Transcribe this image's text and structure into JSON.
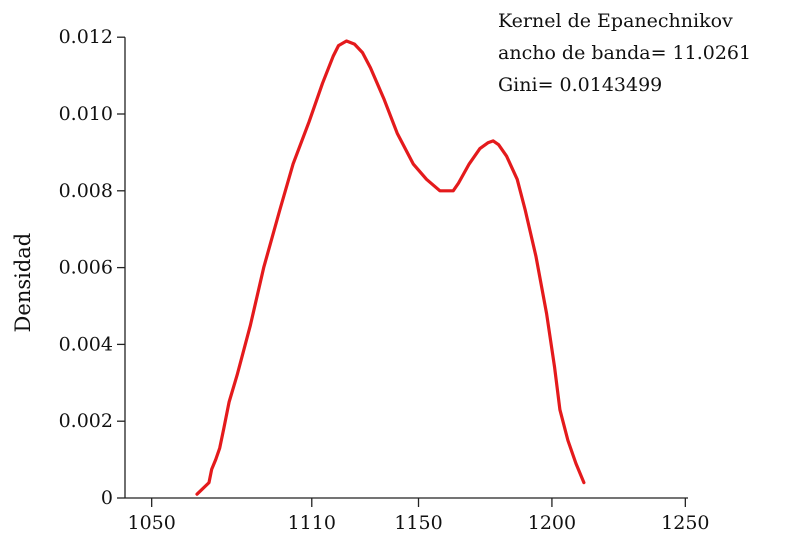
{
  "chart_data": {
    "type": "line",
    "title": "",
    "xlabel": "",
    "ylabel": "Densidad",
    "xlim": [
      1040,
      1251
    ],
    "ylim": [
      0,
      0.0125
    ],
    "xticks": [
      1050,
      1110,
      1150,
      1200,
      1250
    ],
    "xtick_labels": [
      "1050",
      "1110",
      "1150",
      "1200",
      "1250"
    ],
    "yticks": [
      0,
      0.002,
      0.004,
      0.006,
      0.008,
      0.01,
      0.012
    ],
    "ytick_labels": [
      "0",
      "0.002",
      "0.004",
      "0.006",
      "0.008",
      "0.010",
      "0.012"
    ],
    "annotations": [
      "Kernel de Epanechnikov",
      "ancho de banda= 11.0261",
      "Gini= 0.0143499"
    ],
    "grid": false,
    "series": [
      {
        "color": "#e41a1c",
        "x": [
          1067,
          1071.5,
          1072.5,
          1074,
          1075.5,
          1077,
          1079,
          1082,
          1087,
          1092,
          1098,
          1103,
          1109,
          1114,
          1118,
          1120,
          1123,
          1126,
          1129,
          1132,
          1137,
          1142,
          1148,
          1153,
          1158,
          1160,
          1163,
          1165,
          1169,
          1173,
          1176,
          1178,
          1180,
          1183,
          1187,
          1190,
          1194,
          1198,
          1201,
          1203,
          1206,
          1209,
          1212
        ],
        "y": [
          0.0001,
          0.0004,
          0.00075,
          0.001,
          0.0013,
          0.0018,
          0.0025,
          0.0032,
          0.0045,
          0.006,
          0.0075,
          0.0087,
          0.0098,
          0.0108,
          0.0115,
          0.01178,
          0.0119,
          0.01182,
          0.0116,
          0.0112,
          0.0104,
          0.0095,
          0.0087,
          0.0083,
          0.008,
          0.008,
          0.008,
          0.0082,
          0.0087,
          0.0091,
          0.00925,
          0.0093,
          0.0092,
          0.0089,
          0.0083,
          0.0075,
          0.0063,
          0.0048,
          0.0034,
          0.0023,
          0.0015,
          0.0009,
          0.0004
        ]
      }
    ]
  }
}
